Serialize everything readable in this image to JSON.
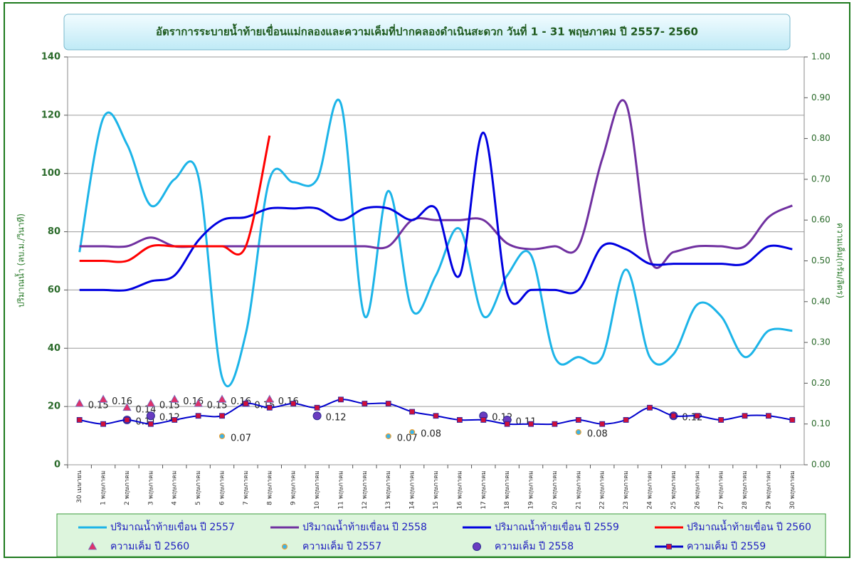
{
  "chart_data": {
    "type": "line",
    "title": "อัตราการระบายน้ำท้ายเขื่อนแม่กลองและความเค็มที่ปากคลองดำเนินสะดวก วันที่  1 - 31 พฤษภาคม ปี 2557- 2560",
    "y_label": "ปริมาณน้ำ (ลบ.ม./วินาที)",
    "y2_label": "ความเค็ม(กรัม/ลิตร)",
    "categories": [
      "30 เมษายน",
      "1 พฤษภาคม",
      "2 พฤษภาคม",
      "3 พฤษภาคม",
      "4 พฤษภาคม",
      "5 พฤษภาคม",
      "6 พฤษภาคม",
      "7 พฤษภาคม",
      "8 พฤษภาคม",
      "9 พฤษภาคม",
      "10 พฤษภาคม",
      "11 พฤษภาคม",
      "12 พฤษภาคม",
      "13 พฤษภาคม",
      "14 พฤษภาคม",
      "15 พฤษภาคม",
      "16 พฤษภาคม",
      "17 พฤษภาคม",
      "18 พฤษภาคม",
      "19 พฤษภาคม",
      "20 พฤษภาคม",
      "21 พฤษภาคม",
      "22 พฤษภาคม",
      "23 พฤษภาคม",
      "24 พฤษภาคม",
      "25 พฤษภาคม",
      "26 พฤษภาคม",
      "27 พฤษภาคม",
      "28 พฤษภาคม",
      "29 พฤษภาคม",
      "30 พฤษภาคม"
    ],
    "ylim": [
      0,
      140
    ],
    "yticks": [
      0,
      20,
      40,
      60,
      80,
      100,
      120,
      140
    ],
    "y2lim": [
      0,
      1
    ],
    "y2ticks": [
      {
        "value": 0,
        "label": "0.00"
      },
      {
        "value": 0.1,
        "label": "0.10"
      },
      {
        "value": 0.2,
        "label": "0.20"
      },
      {
        "value": 0.3,
        "label": "0.30"
      },
      {
        "value": 0.4,
        "label": "0.40"
      },
      {
        "value": 0.5,
        "label": "0.50"
      },
      {
        "value": 0.6,
        "label": "0.60"
      },
      {
        "value": 0.7,
        "label": "0.70"
      },
      {
        "value": 0.8,
        "label": "0.80"
      },
      {
        "value": 0.9,
        "label": "0.90"
      },
      {
        "value": 1,
        "label": "1.00"
      }
    ],
    "grid": true,
    "series": [
      {
        "name": "ปริมาณน้ำท้ายเขื่อน ปี 2557",
        "color": "#1cb4e8",
        "line": true,
        "marker": "none",
        "values": [
          73,
          119,
          110,
          89,
          98,
          99,
          30,
          45,
          98,
          97,
          98,
          124,
          51,
          94,
          53,
          65,
          81,
          51,
          65,
          72,
          37,
          37,
          37,
          67,
          37,
          38,
          55,
          51,
          37,
          46,
          46
        ]
      },
      {
        "name": "ปริมาณน้ำท้ายเขื่อน ปี 2558",
        "color": "#7030a0",
        "line": true,
        "marker": "none",
        "values": [
          75,
          75,
          75,
          78,
          75,
          75,
          75,
          75,
          75,
          75,
          75,
          75,
          75,
          75,
          84,
          84,
          84,
          84,
          76,
          74,
          75,
          75,
          105,
          124,
          71,
          73,
          75,
          75,
          75,
          85,
          89
        ]
      },
      {
        "name": "ปริมาณน้ำท้ายเขื่อน ปี 2559",
        "color": "#0000e0",
        "line": true,
        "marker": "none",
        "values": [
          60,
          60,
          60,
          63,
          65,
          77,
          84,
          85,
          88,
          88,
          88,
          84,
          88,
          88,
          84,
          88,
          65,
          114,
          59,
          60,
          60,
          60,
          75,
          74,
          69,
          69,
          69,
          69,
          69,
          75,
          74
        ]
      },
      {
        "name": "ปริมาณน้ำท้ายเขื่อน ปี 2560",
        "color": "#ff0000",
        "line": true,
        "marker": "none",
        "values": [
          70,
          70,
          70,
          75,
          75,
          75,
          75,
          75,
          113,
          null,
          null,
          null,
          null,
          null,
          null,
          null,
          null,
          null,
          null,
          null,
          null,
          null,
          null,
          null,
          null,
          null,
          null,
          null,
          null,
          null,
          null
        ]
      },
      {
        "name": "ความเค็ม ปี 2560",
        "color": "#e0306a",
        "axis": "y2",
        "line": false,
        "marker": "triangle",
        "data_labels": true,
        "values": [
          0.15,
          0.16,
          0.14,
          0.15,
          0.16,
          0.15,
          0.16,
          0.15,
          0.16,
          null,
          null,
          null,
          null,
          null,
          null,
          null,
          null,
          null,
          null,
          null,
          null,
          null,
          null,
          null,
          null,
          null,
          null,
          null,
          null,
          null,
          null
        ]
      },
      {
        "name": "ความเค็ม ปี 2557",
        "color": "#3cb4e8",
        "axis": "y2",
        "line": false,
        "marker": "dot",
        "data_labels": true,
        "values": [
          null,
          null,
          null,
          null,
          null,
          null,
          0.07,
          null,
          null,
          null,
          null,
          null,
          null,
          0.07,
          0.08,
          null,
          null,
          null,
          null,
          null,
          null,
          0.08,
          null,
          null,
          null,
          null,
          null,
          null,
          null,
          null,
          null
        ]
      },
      {
        "name": "ความเค็ม ปี 2558",
        "color": "#6a3cc0",
        "axis": "y2",
        "line": false,
        "marker": "circle",
        "data_labels": true,
        "values": [
          null,
          null,
          0.11,
          0.12,
          null,
          null,
          null,
          null,
          null,
          null,
          0.12,
          null,
          null,
          null,
          null,
          null,
          null,
          0.12,
          0.11,
          null,
          null,
          null,
          null,
          null,
          null,
          0.12,
          null,
          null,
          null,
          null,
          null
        ]
      },
      {
        "name": "ความเค็ม ปี 2559",
        "color": "#0000cc",
        "marker_color": "#d0103a",
        "axis": "y2",
        "line": true,
        "marker": "square",
        "values": [
          0.11,
          0.1,
          0.11,
          0.1,
          0.11,
          0.12,
          0.12,
          0.15,
          0.14,
          0.15,
          0.14,
          0.16,
          0.15,
          0.15,
          0.13,
          0.12,
          0.11,
          0.11,
          0.1,
          0.1,
          0.1,
          0.11,
          0.1,
          0.11,
          0.14,
          0.12,
          0.12,
          0.11,
          0.12,
          0.12,
          0.11
        ]
      }
    ]
  }
}
